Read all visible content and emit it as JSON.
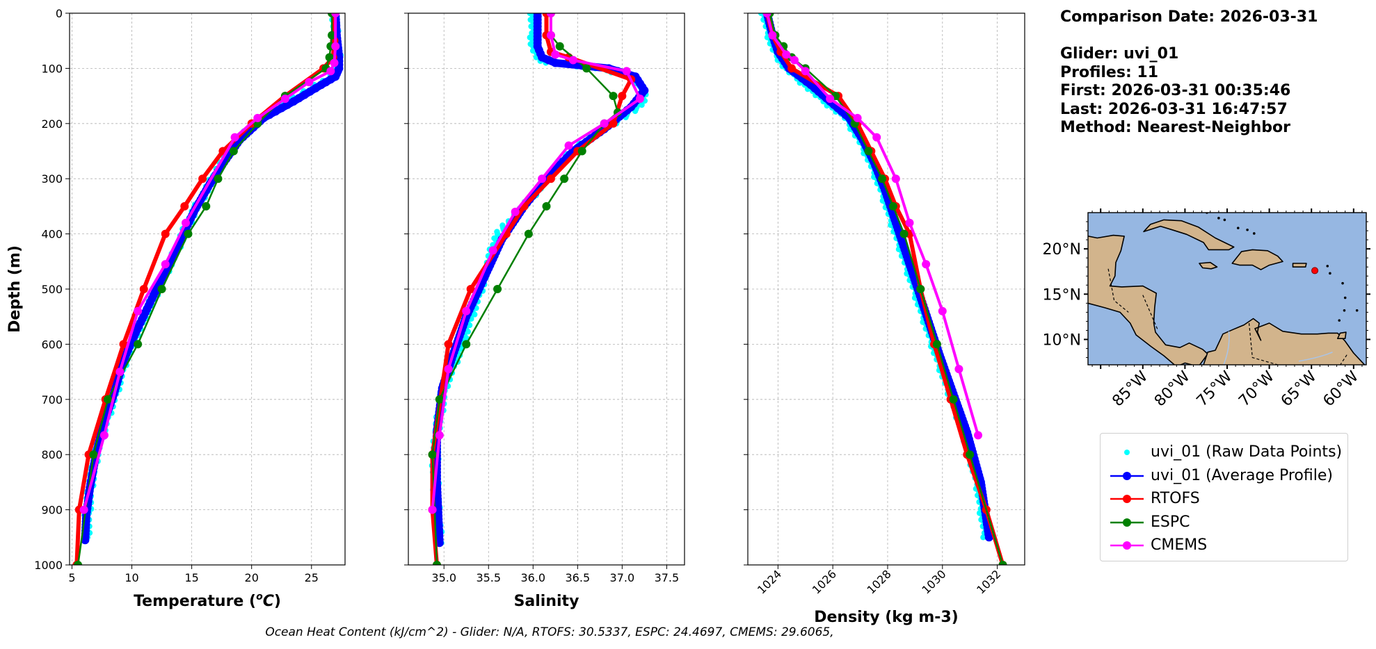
{
  "info": {
    "date_line": "Comparison Date: 2026-03-31",
    "glider_line": "Glider: uvi_01",
    "profiles_line": "Profiles: 11",
    "first_line": "First: 2026-03-31 00:35:46",
    "last_line": "Last: 2026-03-31 16:47:57",
    "method_line": "Method: Nearest-Neighbor"
  },
  "footer": "Ocean Heat Content (kJ/cm^2) - Glider: N/A,  RTOFS: 30.5337,  ESPC: 24.4697,  CMEMS: 29.6065,",
  "colors": {
    "raw": "#00ffff",
    "average": "#0000ff",
    "rtofs": "#ff0000",
    "espc": "#008000",
    "cmems": "#ff00ff",
    "ocean": "#96b7e2",
    "land": "#d2b48c"
  },
  "legend": [
    {
      "key": "raw",
      "label": "uvi_01 (Raw Data Points)"
    },
    {
      "key": "average",
      "label": "uvi_01 (Average Profile)"
    },
    {
      "key": "rtofs",
      "label": "RTOFS"
    },
    {
      "key": "espc",
      "label": "ESPC"
    },
    {
      "key": "cmems",
      "label": "CMEMS"
    }
  ],
  "map": {
    "lon_ticks": [
      "85°W",
      "80°W",
      "75°W",
      "70°W",
      "65°W",
      "60°W"
    ],
    "lat_ticks": [
      "20°N",
      "15°N",
      "10°N"
    ],
    "glider_marker": {
      "lon": -64.6,
      "lat": 17.6
    }
  },
  "chart_data": [
    {
      "type": "line",
      "xlabel": "Temperature (°C)",
      "ylabel": "Depth (m)",
      "xlim": [
        4.8,
        27.8
      ],
      "ylim": [
        1000,
        0
      ],
      "xticks": [
        5,
        10,
        15,
        20,
        25
      ],
      "yticks": [
        0,
        100,
        200,
        300,
        400,
        500,
        600,
        700,
        800,
        900,
        1000
      ],
      "grid": true,
      "series": [
        {
          "name": "uvi_01 (Raw Data Points)",
          "key": "raw",
          "x": [
            26.9,
            27.0,
            27.2,
            27.1,
            26.6,
            25.5,
            23.0,
            20.8,
            18.8,
            17.5,
            16.5,
            15.3,
            14.4,
            13.5,
            12.6,
            11.5,
            10.4,
            9.4,
            8.6,
            7.8,
            7.0,
            6.5,
            6.3,
            6.2
          ],
          "y": [
            0,
            40,
            80,
            100,
            115,
            130,
            160,
            190,
            230,
            270,
            310,
            355,
            395,
            440,
            480,
            530,
            580,
            630,
            690,
            740,
            800,
            860,
            910,
            950
          ]
        },
        {
          "name": "uvi_01 (Average Profile)",
          "key": "average",
          "x": [
            27.0,
            27.1,
            27.3,
            27.3,
            27.0,
            25.8,
            23.5,
            21.0,
            19.0,
            17.7,
            16.5,
            15.3,
            14.4,
            13.5,
            12.5,
            11.4,
            10.3,
            9.3,
            8.5,
            7.7,
            7.0,
            6.5,
            6.2,
            6.1
          ],
          "y": [
            0,
            40,
            80,
            100,
            115,
            130,
            160,
            190,
            230,
            270,
            310,
            355,
            395,
            440,
            480,
            530,
            580,
            630,
            690,
            740,
            800,
            860,
            910,
            955
          ]
        },
        {
          "name": "RTOFS",
          "key": "rtofs",
          "x": [
            26.9,
            26.9,
            26.8,
            26.0,
            22.8,
            20.0,
            17.6,
            15.9,
            14.4,
            12.8,
            11.0,
            9.3,
            7.8,
            6.4,
            5.6,
            5.4
          ],
          "y": [
            0,
            50,
            80,
            100,
            150,
            200,
            250,
            300,
            350,
            400,
            500,
            600,
            700,
            800,
            900,
            1000
          ]
        },
        {
          "name": "ESPC",
          "key": "espc",
          "x": [
            26.7,
            26.7,
            26.6,
            26.5,
            26.2,
            22.8,
            20.5,
            18.5,
            17.2,
            16.2,
            14.7,
            12.5,
            10.5,
            8.0,
            6.8,
            5.5
          ],
          "y": [
            0,
            40,
            60,
            80,
            100,
            150,
            200,
            250,
            300,
            350,
            400,
            500,
            600,
            700,
            800,
            1000
          ]
        },
        {
          "name": "CMEMS",
          "key": "cmems",
          "x": [
            27.0,
            27.0,
            26.9,
            26.6,
            24.8,
            22.8,
            20.5,
            18.6,
            14.5,
            12.8,
            10.5,
            9.0,
            7.7,
            6.0
          ],
          "y": [
            0,
            60,
            90,
            105,
            125,
            155,
            190,
            225,
            380,
            455,
            540,
            650,
            765,
            900
          ]
        }
      ]
    },
    {
      "type": "line",
      "xlabel": "Salinity",
      "ylabel": "",
      "xlim": [
        34.6,
        37.7
      ],
      "ylim": [
        1000,
        0
      ],
      "xticks": [
        35.0,
        35.5,
        36.0,
        36.5,
        37.0,
        37.5
      ],
      "yticks": [
        0,
        100,
        200,
        300,
        400,
        500,
        600,
        700,
        800,
        900,
        1000
      ],
      "grid": true,
      "series": [
        {
          "name": "uvi_01 (Raw Data Points)",
          "key": "raw",
          "x": [
            36.0,
            36.0,
            36.05,
            36.15,
            36.7,
            37.1,
            37.25,
            37.2,
            36.9,
            36.5,
            36.2,
            35.9,
            35.6,
            35.45,
            35.3,
            35.15,
            35.0,
            34.92,
            34.9,
            34.92,
            34.95
          ],
          "y": [
            0,
            60,
            80,
            90,
            100,
            115,
            140,
            170,
            200,
            240,
            290,
            350,
            400,
            480,
            550,
            620,
            680,
            760,
            820,
            900,
            960
          ]
        },
        {
          "name": "uvi_01 (Average Profile)",
          "key": "average",
          "x": [
            36.05,
            36.05,
            36.1,
            36.25,
            36.85,
            37.15,
            37.25,
            37.1,
            36.8,
            36.45,
            36.15,
            35.9,
            35.65,
            35.45,
            35.25,
            35.1,
            34.98,
            34.92,
            34.92,
            34.95
          ],
          "y": [
            0,
            60,
            80,
            90,
            100,
            115,
            140,
            170,
            210,
            250,
            300,
            350,
            410,
            480,
            550,
            620,
            680,
            760,
            850,
            960
          ]
        },
        {
          "name": "RTOFS",
          "key": "rtofs",
          "x": [
            36.15,
            36.15,
            36.2,
            36.4,
            37.1,
            37.0,
            36.9,
            36.5,
            36.2,
            35.9,
            35.7,
            35.3,
            35.05,
            34.87,
            34.87,
            34.92
          ],
          "y": [
            0,
            40,
            70,
            80,
            120,
            150,
            200,
            250,
            300,
            350,
            400,
            500,
            600,
            800,
            900,
            1000
          ]
        },
        {
          "name": "ESPC",
          "key": "espc",
          "x": [
            36.2,
            36.2,
            36.3,
            36.6,
            36.9,
            36.95,
            36.8,
            36.55,
            36.35,
            36.15,
            35.95,
            35.6,
            35.25,
            34.95,
            34.87,
            34.92
          ],
          "y": [
            0,
            40,
            60,
            100,
            150,
            180,
            200,
            250,
            300,
            350,
            400,
            500,
            600,
            700,
            800,
            1000
          ]
        },
        {
          "name": "CMEMS",
          "key": "cmems",
          "x": [
            36.2,
            36.2,
            36.25,
            36.45,
            37.05,
            37.2,
            36.8,
            36.4,
            36.1,
            35.8,
            35.55,
            35.25,
            35.05,
            34.95,
            34.87
          ],
          "y": [
            0,
            40,
            75,
            85,
            105,
            155,
            200,
            240,
            300,
            360,
            430,
            540,
            645,
            765,
            900
          ]
        }
      ]
    },
    {
      "type": "line",
      "xlabel": "Density (kg m-3)",
      "ylabel": "",
      "xlim": [
        1022.9,
        1033.0
      ],
      "ylim": [
        1000,
        0
      ],
      "xticks": [
        1024,
        1026,
        1028,
        1030,
        1032
      ],
      "yticks": [
        0,
        100,
        200,
        300,
        400,
        500,
        600,
        700,
        800,
        900,
        1000
      ],
      "grid": true,
      "series": [
        {
          "name": "uvi_01 (Raw Data Points)",
          "key": "raw",
          "x": [
            1023.5,
            1023.7,
            1023.9,
            1024.3,
            1025.0,
            1025.7,
            1026.5,
            1027.0,
            1027.4,
            1027.8,
            1028.2,
            1028.6,
            1029.0,
            1029.4,
            1029.8,
            1030.3,
            1030.8,
            1031.3,
            1031.6
          ],
          "y": [
            0,
            40,
            70,
            100,
            130,
            160,
            190,
            230,
            270,
            320,
            380,
            440,
            500,
            560,
            620,
            690,
            760,
            850,
            950
          ]
        },
        {
          "name": "uvi_01 (Average Profile)",
          "key": "average",
          "x": [
            1023.6,
            1023.8,
            1024.0,
            1024.4,
            1025.2,
            1025.9,
            1026.6,
            1027.1,
            1027.5,
            1027.9,
            1028.3,
            1028.7,
            1029.1,
            1029.5,
            1029.9,
            1030.4,
            1030.9,
            1031.4,
            1031.7
          ],
          "y": [
            0,
            40,
            70,
            100,
            130,
            160,
            190,
            230,
            270,
            320,
            380,
            440,
            500,
            560,
            620,
            690,
            760,
            850,
            950
          ]
        },
        {
          "name": "RTOFS",
          "key": "rtofs",
          "x": [
            1023.6,
            1023.8,
            1024.1,
            1024.5,
            1026.2,
            1026.9,
            1027.4,
            1027.9,
            1028.3,
            1028.8,
            1029.2,
            1029.7,
            1030.3,
            1030.9,
            1031.6,
            1032.2
          ],
          "y": [
            0,
            40,
            70,
            100,
            150,
            200,
            250,
            300,
            350,
            400,
            500,
            600,
            700,
            800,
            900,
            1000
          ]
        },
        {
          "name": "ESPC",
          "key": "espc",
          "x": [
            1023.7,
            1023.9,
            1024.2,
            1024.5,
            1025.0,
            1026.1,
            1026.8,
            1027.3,
            1027.8,
            1028.2,
            1028.6,
            1029.2,
            1029.8,
            1030.4,
            1031.0,
            1032.2
          ],
          "y": [
            0,
            40,
            60,
            80,
            100,
            150,
            200,
            250,
            300,
            350,
            400,
            500,
            600,
            700,
            800,
            1000
          ]
        },
        {
          "name": "CMEMS",
          "key": "cmems",
          "x": [
            1023.6,
            1023.8,
            1024.3,
            1024.6,
            1025.0,
            1025.9,
            1026.9,
            1027.6,
            1028.3,
            1028.8,
            1029.4,
            1030.0,
            1030.6,
            1031.3
          ],
          "y": [
            0,
            40,
            75,
            85,
            105,
            155,
            190,
            225,
            300,
            380,
            455,
            540,
            645,
            765
          ]
        }
      ]
    }
  ]
}
